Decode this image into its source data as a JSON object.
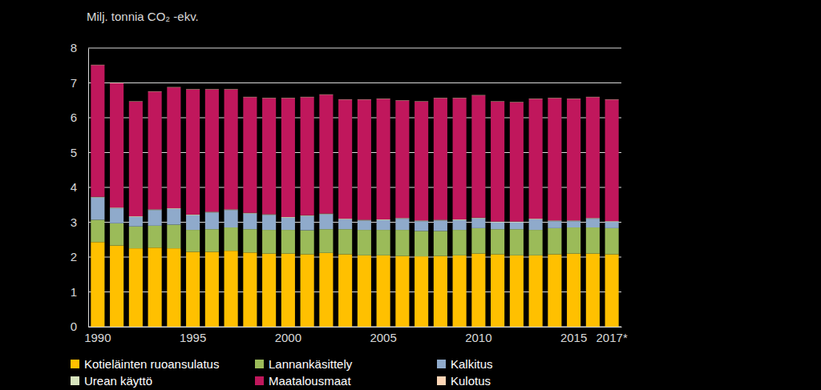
{
  "chart_data": {
    "type": "bar",
    "stacked": true,
    "y_label": "Milj. tonnia CO₂ -ekv.",
    "categories": [
      "1990",
      null,
      null,
      null,
      null,
      "1995",
      null,
      null,
      null,
      null,
      "2000",
      null,
      null,
      null,
      null,
      "2005",
      null,
      null,
      null,
      null,
      "2010",
      null,
      null,
      null,
      null,
      "2015",
      null,
      "2017*"
    ],
    "series": [
      {
        "name": "Kotieläinten ruoansulatus",
        "color": "#ffc000",
        "values": [
          2.43,
          2.33,
          2.25,
          2.27,
          2.25,
          2.15,
          2.15,
          2.18,
          2.13,
          2.1,
          2.1,
          2.08,
          2.12,
          2.08,
          2.05,
          2.05,
          2.03,
          2.02,
          2.03,
          2.05,
          2.1,
          2.08,
          2.05,
          2.05,
          2.08,
          2.1,
          2.1,
          2.08
        ]
      },
      {
        "name": "Lannankäsittely",
        "color": "#9bbb59",
        "values": [
          0.64,
          0.64,
          0.63,
          0.63,
          0.68,
          0.63,
          0.65,
          0.67,
          0.67,
          0.68,
          0.68,
          0.69,
          0.68,
          0.72,
          0.73,
          0.73,
          0.75,
          0.73,
          0.72,
          0.73,
          0.73,
          0.72,
          0.75,
          0.73,
          0.75,
          0.75,
          0.75,
          0.75
        ]
      },
      {
        "name": "Kalkitus",
        "color": "#8faacb",
        "values": [
          0.64,
          0.43,
          0.27,
          0.45,
          0.45,
          0.42,
          0.48,
          0.5,
          0.45,
          0.43,
          0.35,
          0.41,
          0.43,
          0.28,
          0.27,
          0.28,
          0.32,
          0.28,
          0.3,
          0.28,
          0.28,
          0.2,
          0.2,
          0.3,
          0.2,
          0.18,
          0.25,
          0.18
        ]
      },
      {
        "name": "Urean käyttö",
        "color": "#d7e4bd",
        "values": [
          0.02,
          0.02,
          0.02,
          0.02,
          0.02,
          0.02,
          0.02,
          0.02,
          0.02,
          0.02,
          0.02,
          0.02,
          0.02,
          0.02,
          0.02,
          0.02,
          0.02,
          0.02,
          0.02,
          0.02,
          0.02,
          0.02,
          0.02,
          0.02,
          0.02,
          0.02,
          0.02,
          0.02
        ]
      },
      {
        "name": "Maatalousmaat",
        "color": "#c0175c",
        "values": [
          3.78,
          3.57,
          3.29,
          3.38,
          3.47,
          3.59,
          3.51,
          3.44,
          3.32,
          3.33,
          3.41,
          3.39,
          3.41,
          3.42,
          3.45,
          3.46,
          3.37,
          3.41,
          3.49,
          3.48,
          3.51,
          3.44,
          3.42,
          3.44,
          3.51,
          3.49,
          3.47,
          3.49
        ]
      },
      {
        "name": "Kulotus",
        "color": "#fcd5b5",
        "values": [
          0.01,
          0.01,
          0.01,
          0.01,
          0.01,
          0.01,
          0.01,
          0.01,
          0.01,
          0.01,
          0.01,
          0.01,
          0.01,
          0.01,
          0.01,
          0.01,
          0.01,
          0.01,
          0.01,
          0.01,
          0.01,
          0.01,
          0.01,
          0.01,
          0.01,
          0.01,
          0.01,
          0.01
        ]
      }
    ],
    "ylim": [
      0,
      8
    ],
    "yticks": [
      0,
      1,
      2,
      3,
      4,
      5,
      6,
      7,
      8
    ],
    "grid": true,
    "legend": "bottom"
  }
}
